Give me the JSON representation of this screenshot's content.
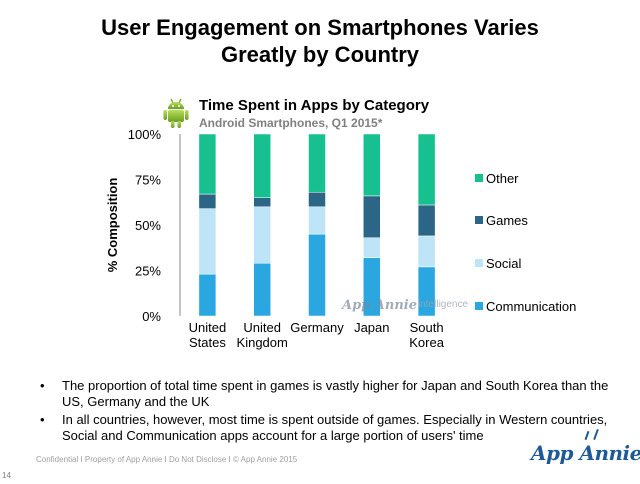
{
  "slide": {
    "title_line1": "User Engagement on Smartphones Varies",
    "title_line2": "Greatly by Country"
  },
  "chart_header": {
    "title": "Time Spent in Apps by Category",
    "subtitle": "Android Smartphones, Q1 2015*"
  },
  "chart_data": {
    "type": "bar",
    "stacked": true,
    "ylabel": "% Composition",
    "ylim": [
      0,
      100
    ],
    "yticks": [
      "0%",
      "25%",
      "50%",
      "75%",
      "100%"
    ],
    "categories": [
      [
        "United",
        "States"
      ],
      [
        "United",
        "Kingdom"
      ],
      [
        "Germany"
      ],
      [
        "Japan"
      ],
      [
        "South",
        "Korea"
      ]
    ],
    "series": [
      {
        "name": "Communication",
        "color": "#2aa7e0",
        "values": [
          23,
          29,
          45,
          32,
          27
        ]
      },
      {
        "name": "Social",
        "color": "#bde4f7",
        "values": [
          36,
          31,
          15,
          11,
          17
        ]
      },
      {
        "name": "Games",
        "color": "#2b6686",
        "values": [
          8,
          5,
          8,
          23,
          17
        ]
      },
      {
        "name": "Other",
        "color": "#17c08f",
        "values": [
          33,
          35,
          32,
          34,
          39
        ]
      }
    ],
    "legend_order": [
      "Other",
      "Games",
      "Social",
      "Communication"
    ],
    "watermark": {
      "brand": "App Annie",
      "product": "intelligence"
    }
  },
  "bullets": [
    "The proportion of total time spent in games is vastly higher for Japan and South Korea than the US, Germany and the UK",
    "In all countries, however, most time is spent outside of games. Especially in Western countries, Social and Communication apps account for a large portion of users' time"
  ],
  "footer": {
    "confidential": "Confidential  I  Property of App Annie  I  Do Not Disclose  I  © App Annie 2015",
    "page_number": "14",
    "logo": "App Annie"
  },
  "icons": {
    "android": "android-robot-icon",
    "brand": "app-annie-logo"
  }
}
